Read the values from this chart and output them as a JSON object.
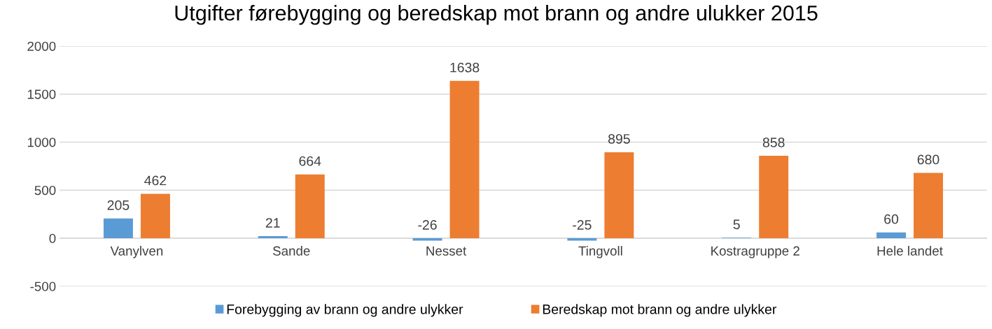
{
  "chart_data": {
    "type": "bar",
    "title": "Utgifter førebygging og beredskap mot brann og andre ulukker 2015",
    "categories": [
      "Vanylven",
      "Sande",
      "Nesset",
      "Tingvoll",
      "Kostragruppe 2",
      "Hele landet"
    ],
    "series": [
      {
        "name": "Forebygging av brann og andre ulykker",
        "color": "#5b9bd5",
        "values": [
          205,
          21,
          -26,
          -25,
          5,
          60
        ]
      },
      {
        "name": "Beredskap mot brann og andre ulykker",
        "color": "#ed7d31",
        "values": [
          462,
          664,
          1638,
          895,
          858,
          680
        ]
      }
    ],
    "ylim": [
      -500,
      2000
    ],
    "yticks": [
      -500,
      0,
      500,
      1000,
      1500,
      2000
    ],
    "grid": "y",
    "legend": "bottom",
    "data_labels": true
  }
}
